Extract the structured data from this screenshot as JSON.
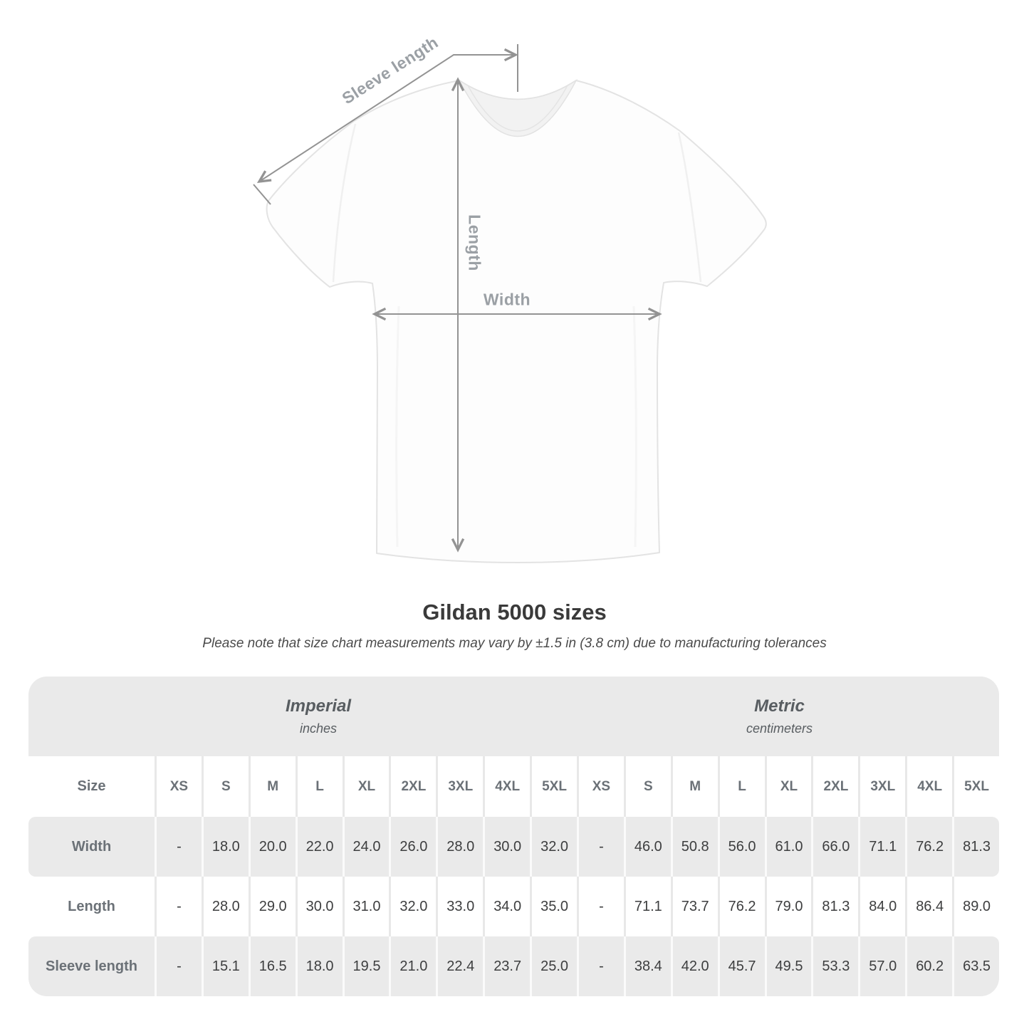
{
  "diagram": {
    "labels": {
      "sleeve_length": "Sleeve length",
      "length": "Length",
      "width": "Width"
    }
  },
  "chart_data": {
    "type": "table",
    "title": "Gildan 5000 sizes",
    "note": "Please note that size chart measurements may vary by ±1.5 in (3.8 cm) due to manufacturing tolerances",
    "corner_label": "Size",
    "sections": [
      {
        "label": "Imperial",
        "sublabel": "inches"
      },
      {
        "label": "Metric",
        "sublabel": "centimeters"
      }
    ],
    "size_columns": [
      "XS",
      "S",
      "M",
      "L",
      "XL",
      "2XL",
      "3XL",
      "4XL",
      "5XL"
    ],
    "rows": [
      {
        "label": "Width",
        "imperial": [
          "-",
          "18.0",
          "20.0",
          "22.0",
          "24.0",
          "26.0",
          "28.0",
          "30.0",
          "32.0"
        ],
        "metric": [
          "-",
          "46.0",
          "50.8",
          "56.0",
          "61.0",
          "66.0",
          "71.1",
          "76.2",
          "81.3"
        ]
      },
      {
        "label": "Length",
        "imperial": [
          "-",
          "28.0",
          "29.0",
          "30.0",
          "31.0",
          "32.0",
          "33.0",
          "34.0",
          "35.0"
        ],
        "metric": [
          "-",
          "71.1",
          "73.7",
          "76.2",
          "79.0",
          "81.3",
          "84.0",
          "86.4",
          "89.0"
        ]
      },
      {
        "label": "Sleeve length",
        "imperial": [
          "-",
          "15.1",
          "16.5",
          "18.0",
          "19.5",
          "21.0",
          "22.4",
          "23.7",
          "25.0"
        ],
        "metric": [
          "-",
          "38.4",
          "42.0",
          "45.7",
          "49.5",
          "53.3",
          "57.0",
          "60.2",
          "63.5"
        ]
      }
    ]
  },
  "colors": {
    "stripe_gray": "#eaeaea",
    "header_text": "#6b7177",
    "value_text": "#3d3e3f",
    "band_text": "#585d61",
    "arrow": "#939393",
    "diagram_label": "#9ba0a5",
    "title_text": "#3a3a3a"
  }
}
